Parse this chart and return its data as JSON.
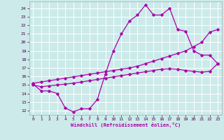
{
  "xlabel": "Windchill (Refroidissement éolien,°C)",
  "bg_color": "#cceaea",
  "line_color": "#aa00aa",
  "grid_color": "#ffffff",
  "x_ticks": [
    0,
    1,
    2,
    3,
    4,
    5,
    6,
    7,
    8,
    9,
    10,
    11,
    12,
    13,
    14,
    15,
    16,
    17,
    18,
    19,
    20,
    21,
    22,
    23
  ],
  "y_ticks": [
    12,
    13,
    14,
    15,
    16,
    17,
    18,
    19,
    20,
    21,
    22,
    23,
    24
  ],
  "ylim": [
    11.5,
    24.8
  ],
  "xlim": [
    -0.5,
    23.5
  ],
  "curve1_x": [
    0,
    1,
    2,
    3,
    4,
    5,
    6,
    7,
    8,
    9,
    10,
    11,
    12,
    13,
    14,
    15,
    16,
    17,
    18,
    19,
    20,
    21,
    22,
    23
  ],
  "curve1_y": [
    15.1,
    14.3,
    14.3,
    14.0,
    12.3,
    11.85,
    12.2,
    12.2,
    13.3,
    16.3,
    19.0,
    21.0,
    22.5,
    23.2,
    24.4,
    23.2,
    23.2,
    24.0,
    21.5,
    21.3,
    19.0,
    18.5,
    18.5,
    17.5
  ],
  "curve2_x": [
    0,
    1,
    2,
    3,
    4,
    5,
    6,
    7,
    8,
    9,
    10,
    11,
    12,
    13,
    14,
    15,
    16,
    17,
    18,
    19,
    20,
    21,
    22,
    23
  ],
  "curve2_y": [
    15.2,
    15.35,
    15.5,
    15.65,
    15.8,
    15.95,
    16.1,
    16.25,
    16.4,
    16.55,
    16.7,
    16.85,
    17.0,
    17.2,
    17.5,
    17.8,
    18.1,
    18.4,
    18.7,
    19.0,
    19.5,
    20.0,
    21.2,
    21.5
  ],
  "curve3_x": [
    0,
    1,
    2,
    3,
    4,
    5,
    6,
    7,
    8,
    9,
    10,
    11,
    12,
    13,
    14,
    15,
    16,
    17,
    18,
    19,
    20,
    21,
    22,
    23
  ],
  "curve3_y": [
    15.0,
    14.8,
    14.9,
    15.0,
    15.1,
    15.2,
    15.35,
    15.5,
    15.65,
    15.8,
    15.95,
    16.1,
    16.25,
    16.4,
    16.55,
    16.7,
    16.85,
    16.9,
    16.85,
    16.7,
    16.6,
    16.5,
    16.6,
    17.5
  ]
}
